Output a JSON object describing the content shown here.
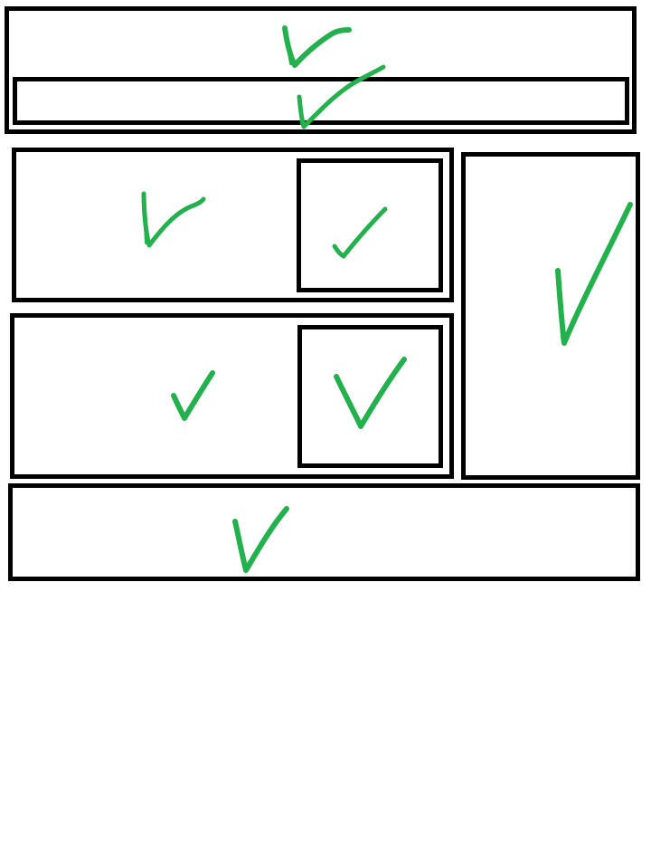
{
  "colors": {
    "border": "#000000",
    "check": "#22b14c",
    "background": "#ffffff"
  },
  "regions": [
    {
      "name": "outer-header",
      "approved": true
    },
    {
      "name": "header-inner-bar",
      "approved": true
    },
    {
      "name": "panel-top",
      "approved": true
    },
    {
      "name": "panel-top-inner",
      "approved": true
    },
    {
      "name": "panel-bottom",
      "approved": true
    },
    {
      "name": "panel-bottom-inner",
      "approved": true
    },
    {
      "name": "side-panel",
      "approved": true
    },
    {
      "name": "footer-panel",
      "approved": true
    }
  ],
  "icons": {
    "check": "checkmark-icon"
  }
}
